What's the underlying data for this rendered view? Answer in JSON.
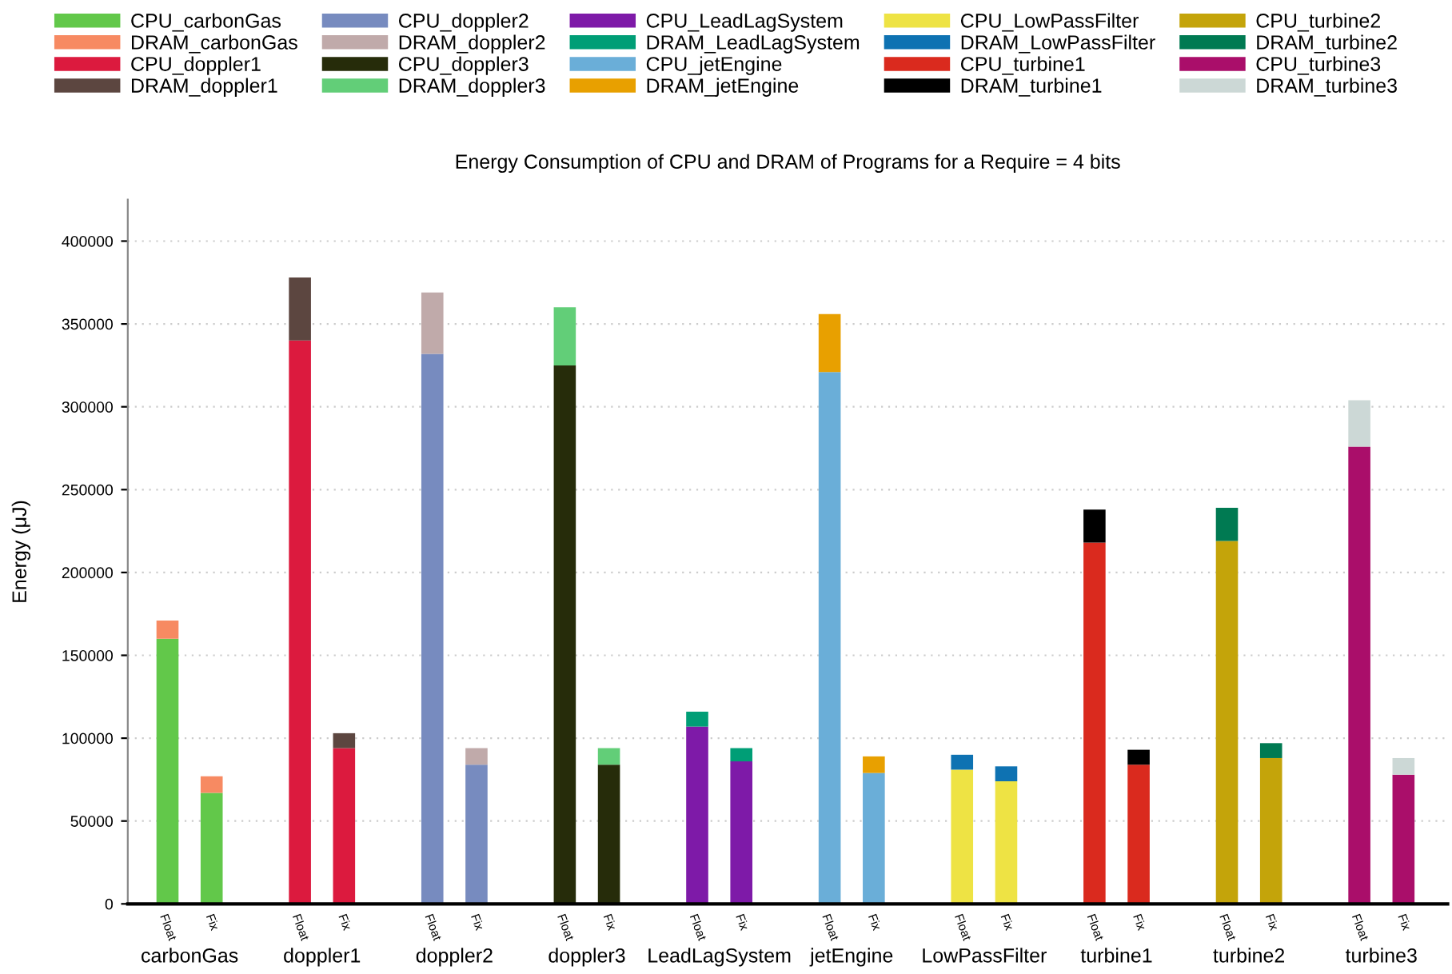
{
  "chart_data": {
    "type": "bar",
    "stacked": true,
    "title": "Energy Consumption of CPU and DRAM of Programs for a Require = 4 bits",
    "ylabel": "Energy (μJ)",
    "categories": [
      "Float",
      "Fix",
      null,
      "Float",
      "Fix",
      null,
      "Float",
      "Fix",
      null,
      "Float",
      "Fix",
      null,
      "Float",
      "Fix",
      null,
      "Float",
      "Fix",
      null,
      "Float",
      "Fix",
      null,
      "Float",
      "Fix",
      null,
      "Float",
      "Fix",
      null,
      "Float",
      "Fix"
    ],
    "annotations": [
      "carbonGas",
      "doppler1",
      "doppler2",
      "doppler3",
      "LeadLagSystem",
      "jetEngine",
      "LowPassFilter",
      "turbine1",
      "turbine2",
      "turbine3"
    ],
    "ylim": [
      0,
      425000
    ],
    "yticks": [
      0,
      50000,
      100000,
      150000,
      200000,
      250000,
      300000,
      350000,
      400000
    ],
    "grid": "y",
    "legend": "top",
    "series": [
      {
        "name": "CPU_carbonGas",
        "color": "#62c84a",
        "values": [
          160000,
          67000,
          null,
          null,
          null,
          null,
          null,
          null,
          null,
          null,
          null,
          null,
          null,
          null,
          null,
          null,
          null,
          null,
          null,
          null,
          null,
          null,
          null,
          null,
          null,
          null,
          null,
          null,
          null
        ]
      },
      {
        "name": "DRAM_carbonGas",
        "color": "#f78a62",
        "values": [
          11000,
          10000,
          null,
          null,
          null,
          null,
          null,
          null,
          null,
          null,
          null,
          null,
          null,
          null,
          null,
          null,
          null,
          null,
          null,
          null,
          null,
          null,
          null,
          null,
          null,
          null,
          null,
          null,
          null
        ]
      },
      {
        "name": "CPU_doppler1",
        "color": "#dc1a3e",
        "values": [
          null,
          null,
          null,
          340000,
          94000,
          null,
          null,
          null,
          null,
          null,
          null,
          null,
          null,
          null,
          null,
          null,
          null,
          null,
          null,
          null,
          null,
          null,
          null,
          null,
          null,
          null,
          null,
          null,
          null
        ]
      },
      {
        "name": "DRAM_doppler1",
        "color": "#5c4640",
        "values": [
          null,
          null,
          null,
          38000,
          9000,
          null,
          null,
          null,
          null,
          null,
          null,
          null,
          null,
          null,
          null,
          null,
          null,
          null,
          null,
          null,
          null,
          null,
          null,
          null,
          null,
          null,
          null,
          null,
          null
        ]
      },
      {
        "name": "CPU_doppler2",
        "color": "#778bbf",
        "values": [
          null,
          null,
          null,
          null,
          null,
          null,
          332000,
          84000,
          null,
          null,
          null,
          null,
          null,
          null,
          null,
          null,
          null,
          null,
          null,
          null,
          null,
          null,
          null,
          null,
          null,
          null,
          null,
          null,
          null
        ]
      },
      {
        "name": "DRAM_doppler2",
        "color": "#c0aaaa",
        "values": [
          null,
          null,
          null,
          null,
          null,
          null,
          37000,
          10000,
          null,
          null,
          null,
          null,
          null,
          null,
          null,
          null,
          null,
          null,
          null,
          null,
          null,
          null,
          null,
          null,
          null,
          null,
          null,
          null,
          null
        ]
      },
      {
        "name": "CPU_doppler3",
        "color": "#262c0a",
        "values": [
          null,
          null,
          null,
          null,
          null,
          null,
          null,
          null,
          null,
          325000,
          84000,
          null,
          null,
          null,
          null,
          null,
          null,
          null,
          null,
          null,
          null,
          null,
          null,
          null,
          null,
          null,
          null,
          null,
          null
        ]
      },
      {
        "name": "DRAM_doppler3",
        "color": "#62ce78",
        "values": [
          null,
          null,
          null,
          null,
          null,
          null,
          null,
          null,
          null,
          35000,
          10000,
          null,
          null,
          null,
          null,
          null,
          null,
          null,
          null,
          null,
          null,
          null,
          null,
          null,
          null,
          null,
          null,
          null,
          null
        ]
      },
      {
        "name": "CPU_LeadLagSystem",
        "color": "#7e1aa8",
        "values": [
          null,
          null,
          null,
          null,
          null,
          null,
          null,
          null,
          null,
          null,
          null,
          null,
          107000,
          86000,
          null,
          null,
          null,
          null,
          null,
          null,
          null,
          null,
          null,
          null,
          null,
          null,
          null,
          null,
          null
        ]
      },
      {
        "name": "DRAM_LeadLagSystem",
        "color": "#009e76",
        "values": [
          null,
          null,
          null,
          null,
          null,
          null,
          null,
          null,
          null,
          null,
          null,
          null,
          9000,
          8000,
          null,
          null,
          null,
          null,
          null,
          null,
          null,
          null,
          null,
          null,
          null,
          null,
          null,
          null,
          null
        ]
      },
      {
        "name": "CPU_jetEngine",
        "color": "#6aaed8",
        "values": [
          null,
          null,
          null,
          null,
          null,
          null,
          null,
          null,
          null,
          null,
          null,
          null,
          null,
          null,
          null,
          321000,
          79000,
          null,
          null,
          null,
          null,
          null,
          null,
          null,
          null,
          null,
          null,
          null,
          null
        ]
      },
      {
        "name": "DRAM_jetEngine",
        "color": "#e8a000",
        "values": [
          null,
          null,
          null,
          null,
          null,
          null,
          null,
          null,
          null,
          null,
          null,
          null,
          null,
          null,
          null,
          35000,
          10000,
          null,
          null,
          null,
          null,
          null,
          null,
          null,
          null,
          null,
          null,
          null,
          null
        ]
      },
      {
        "name": "CPU_LowPassFilter",
        "color": "#eee344",
        "values": [
          null,
          null,
          null,
          null,
          null,
          null,
          null,
          null,
          null,
          null,
          null,
          null,
          null,
          null,
          null,
          null,
          null,
          null,
          81000,
          74000,
          null,
          null,
          null,
          null,
          null,
          null,
          null,
          null,
          null
        ]
      },
      {
        "name": "DRAM_LowPassFilter",
        "color": "#0e72b2",
        "values": [
          null,
          null,
          null,
          null,
          null,
          null,
          null,
          null,
          null,
          null,
          null,
          null,
          null,
          null,
          null,
          null,
          null,
          null,
          9000,
          9000,
          null,
          null,
          null,
          null,
          null,
          null,
          null,
          null,
          null
        ]
      },
      {
        "name": "CPU_turbine1",
        "color": "#da2a1e",
        "values": [
          null,
          null,
          null,
          null,
          null,
          null,
          null,
          null,
          null,
          null,
          null,
          null,
          null,
          null,
          null,
          null,
          null,
          null,
          null,
          null,
          null,
          218000,
          84000,
          null,
          null,
          null,
          null,
          null,
          null
        ]
      },
      {
        "name": "DRAM_turbine1",
        "color": "#000000",
        "values": [
          null,
          null,
          null,
          null,
          null,
          null,
          null,
          null,
          null,
          null,
          null,
          null,
          null,
          null,
          null,
          null,
          null,
          null,
          null,
          null,
          null,
          20000,
          9000,
          null,
          null,
          null,
          null,
          null,
          null
        ]
      },
      {
        "name": "CPU_turbine2",
        "color": "#c4a40a",
        "values": [
          null,
          null,
          null,
          null,
          null,
          null,
          null,
          null,
          null,
          null,
          null,
          null,
          null,
          null,
          null,
          null,
          null,
          null,
          null,
          null,
          null,
          null,
          null,
          null,
          219000,
          88000,
          null,
          null,
          null
        ]
      },
      {
        "name": "DRAM_turbine2",
        "color": "#007a52",
        "values": [
          null,
          null,
          null,
          null,
          null,
          null,
          null,
          null,
          null,
          null,
          null,
          null,
          null,
          null,
          null,
          null,
          null,
          null,
          null,
          null,
          null,
          null,
          null,
          null,
          20000,
          9000,
          null,
          null,
          null
        ]
      },
      {
        "name": "CPU_turbine3",
        "color": "#aa0e6a",
        "values": [
          null,
          null,
          null,
          null,
          null,
          null,
          null,
          null,
          null,
          null,
          null,
          null,
          null,
          null,
          null,
          null,
          null,
          null,
          null,
          null,
          null,
          null,
          null,
          null,
          null,
          null,
          null,
          276000,
          78000
        ]
      },
      {
        "name": "DRAM_turbine3",
        "color": "#ccd8d6",
        "values": [
          null,
          null,
          null,
          null,
          null,
          null,
          null,
          null,
          null,
          null,
          null,
          null,
          null,
          null,
          null,
          null,
          null,
          null,
          null,
          null,
          null,
          null,
          null,
          null,
          null,
          null,
          null,
          28000,
          10000
        ]
      }
    ]
  }
}
